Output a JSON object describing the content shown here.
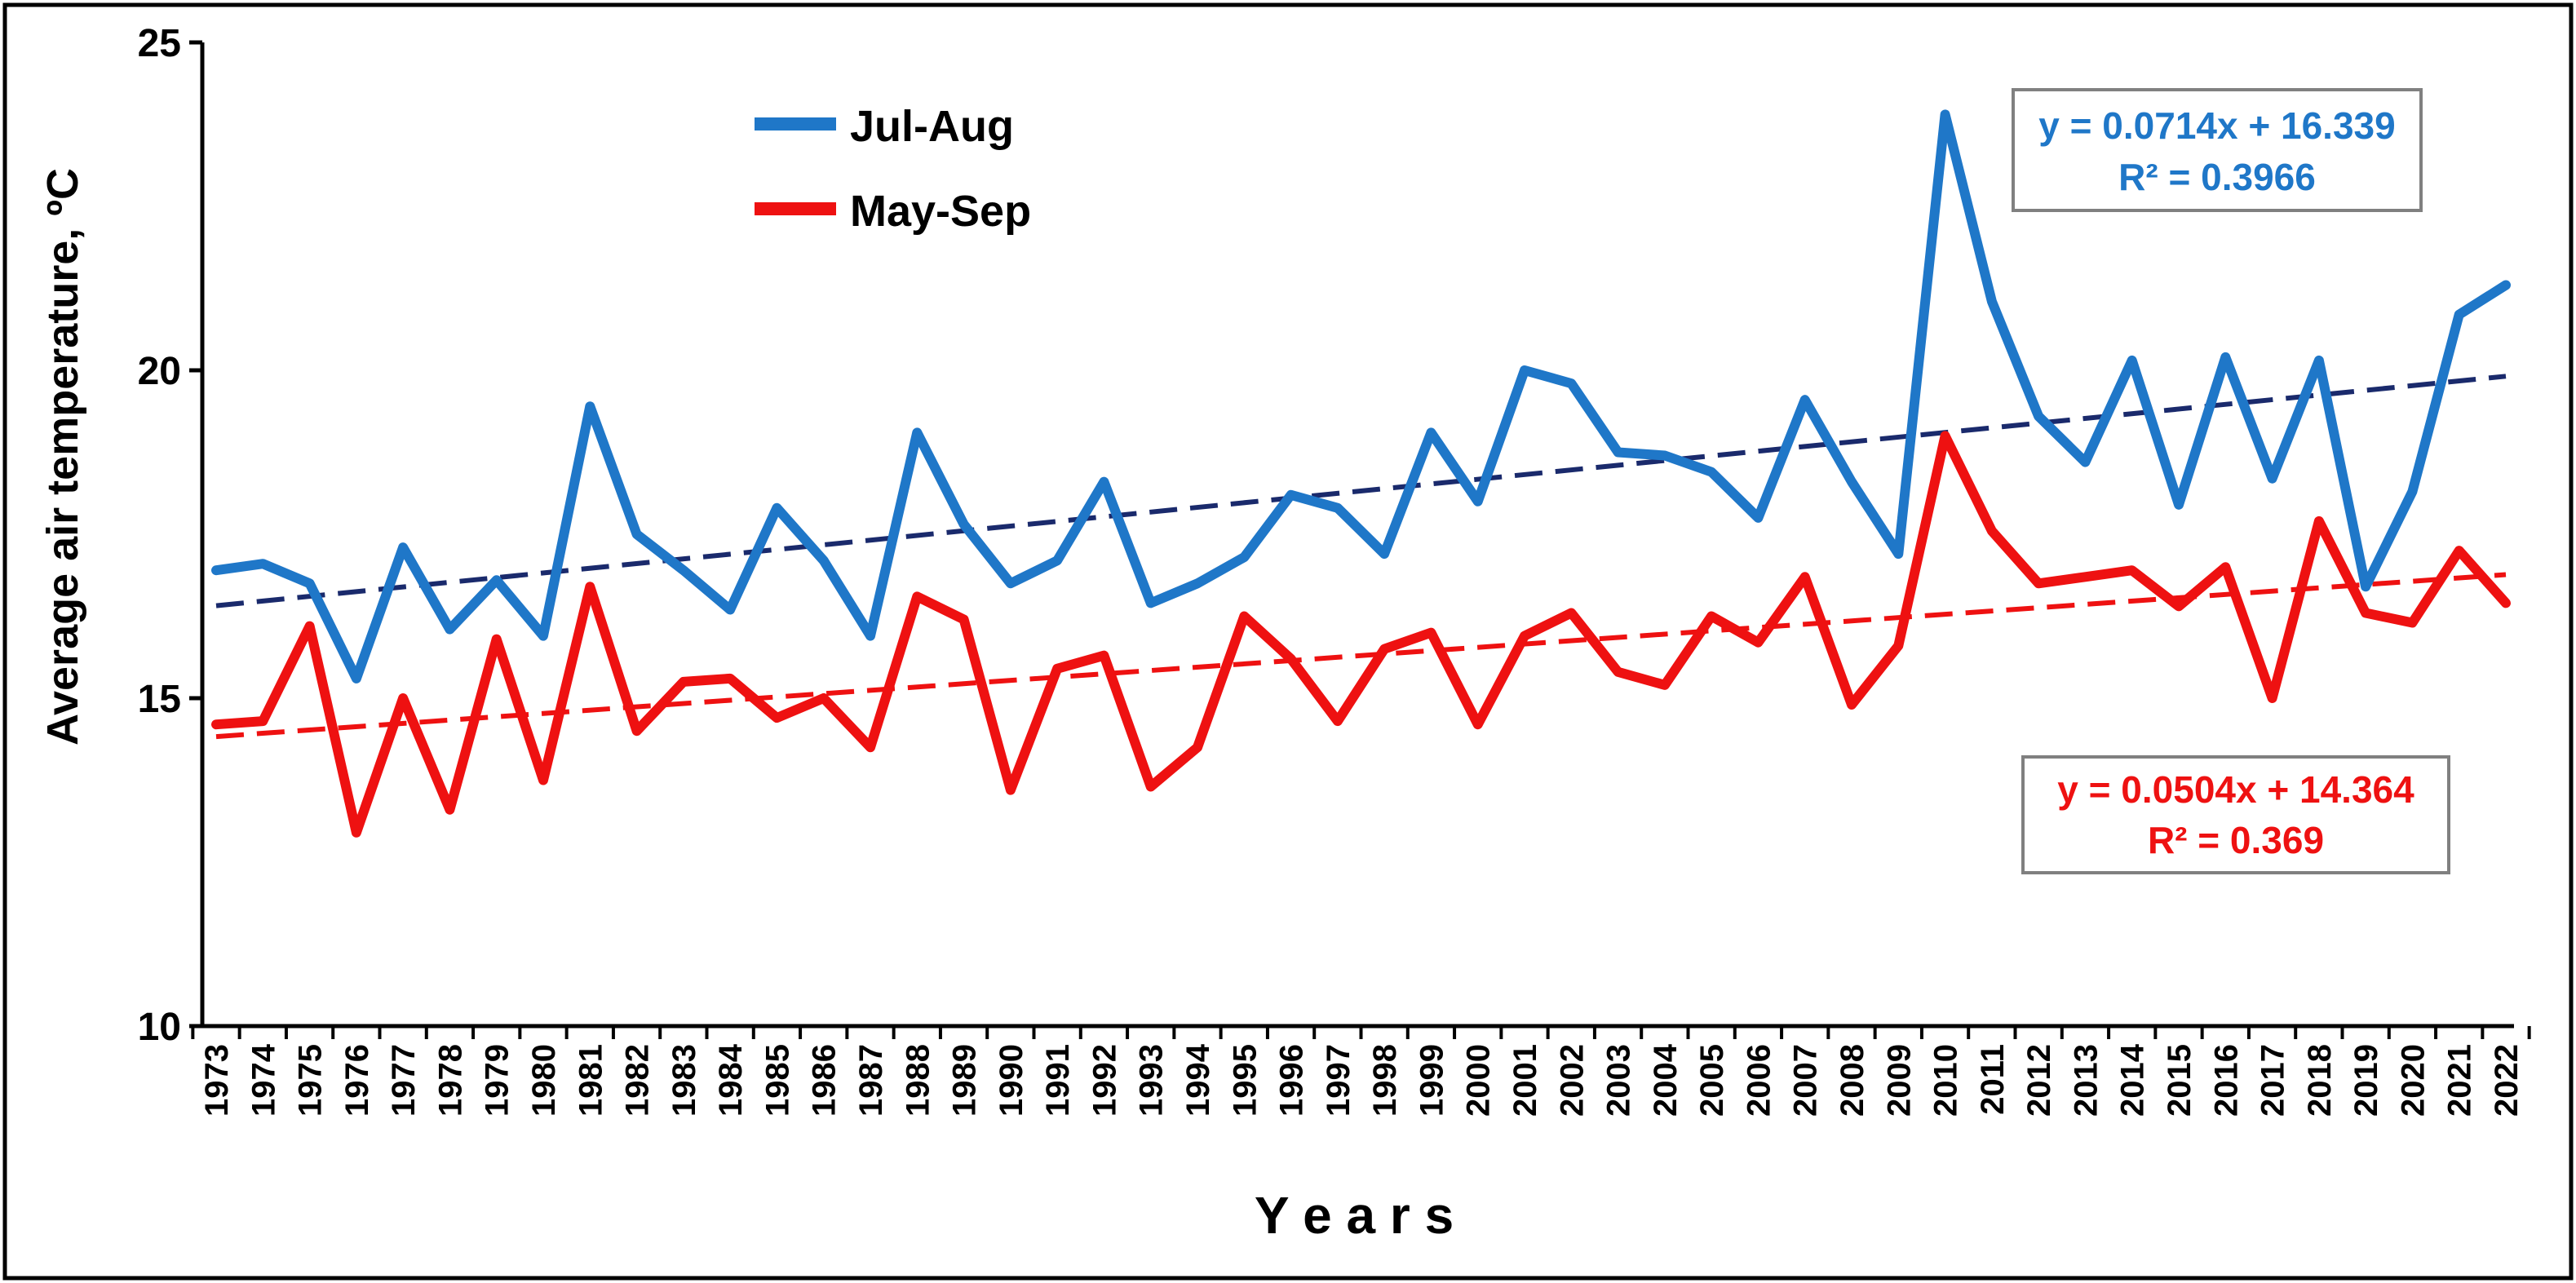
{
  "chart_data": {
    "type": "line",
    "title": "",
    "xlabel": "Y e a r s",
    "ylabel": "Average air temperature, ºC",
    "ylim": [
      10,
      25
    ],
    "y_ticks": [
      10,
      15,
      20,
      25
    ],
    "grid": false,
    "legend_position": "top-left",
    "categories": [
      "1973",
      "1974",
      "1975",
      "1976",
      "1977",
      "1978",
      "1979",
      "1980",
      "1981",
      "1982",
      "1983",
      "1984",
      "1985",
      "1986",
      "1987",
      "1988",
      "1989",
      "1990",
      "1991",
      "1992",
      "1993",
      "1994",
      "1995",
      "1996",
      "1997",
      "1998",
      "1999",
      "2000",
      "2001",
      "2002",
      "2003",
      "2004",
      "2005",
      "2006",
      "2007",
      "2008",
      "2009",
      "2010",
      "2011",
      "2012",
      "2013",
      "2014",
      "2015",
      "2016",
      "2017",
      "2018",
      "2019",
      "2020",
      "2021",
      "2022"
    ],
    "series": [
      {
        "name": "Jul-Aug",
        "color": "#1f77c8",
        "values": [
          16.95,
          17.05,
          16.75,
          15.3,
          17.3,
          16.05,
          16.8,
          15.95,
          19.45,
          17.5,
          16.95,
          16.35,
          17.9,
          17.1,
          15.95,
          19.05,
          17.65,
          16.75,
          17.1,
          18.3,
          16.45,
          16.75,
          17.15,
          18.1,
          17.9,
          17.2,
          19.05,
          18.0,
          20.0,
          19.8,
          18.75,
          18.7,
          18.45,
          17.75,
          19.55,
          18.3,
          17.2,
          23.9,
          21.05,
          19.3,
          18.6,
          20.15,
          17.95,
          20.2,
          18.35,
          20.15,
          16.7,
          18.15,
          20.85,
          21.3
        ]
      },
      {
        "name": "May-Sep",
        "color": "#ee1111",
        "values": [
          14.6,
          14.65,
          16.1,
          12.95,
          15.0,
          13.3,
          15.9,
          13.75,
          16.7,
          14.5,
          15.25,
          15.3,
          14.7,
          15.0,
          14.25,
          16.55,
          16.2,
          13.6,
          15.45,
          15.65,
          13.65,
          14.25,
          16.25,
          15.6,
          14.65,
          15.75,
          16.0,
          14.6,
          15.95,
          16.3,
          15.4,
          15.2,
          16.25,
          15.85,
          16.85,
          14.9,
          15.8,
          19.0,
          17.55,
          16.75,
          16.85,
          16.95,
          16.4,
          17.0,
          15.0,
          17.7,
          16.3,
          16.15,
          17.25,
          16.45
        ]
      }
    ],
    "trendlines": [
      {
        "series": "Jul-Aug",
        "slope": 0.0714,
        "intercept": 16.339,
        "color": "#1a2a6c",
        "label_color": "#1f77c8",
        "equation": "y = 0.0714x + 16.339",
        "r2": "R² = 0.3966",
        "box_position": "top-right"
      },
      {
        "series": "May-Sep",
        "slope": 0.0504,
        "intercept": 14.364,
        "color": "#ee1111",
        "label_color": "#ee1111",
        "equation": "y = 0.0504x + 14.364",
        "r2": "R² = 0.369",
        "box_position": "middle-right"
      }
    ]
  }
}
